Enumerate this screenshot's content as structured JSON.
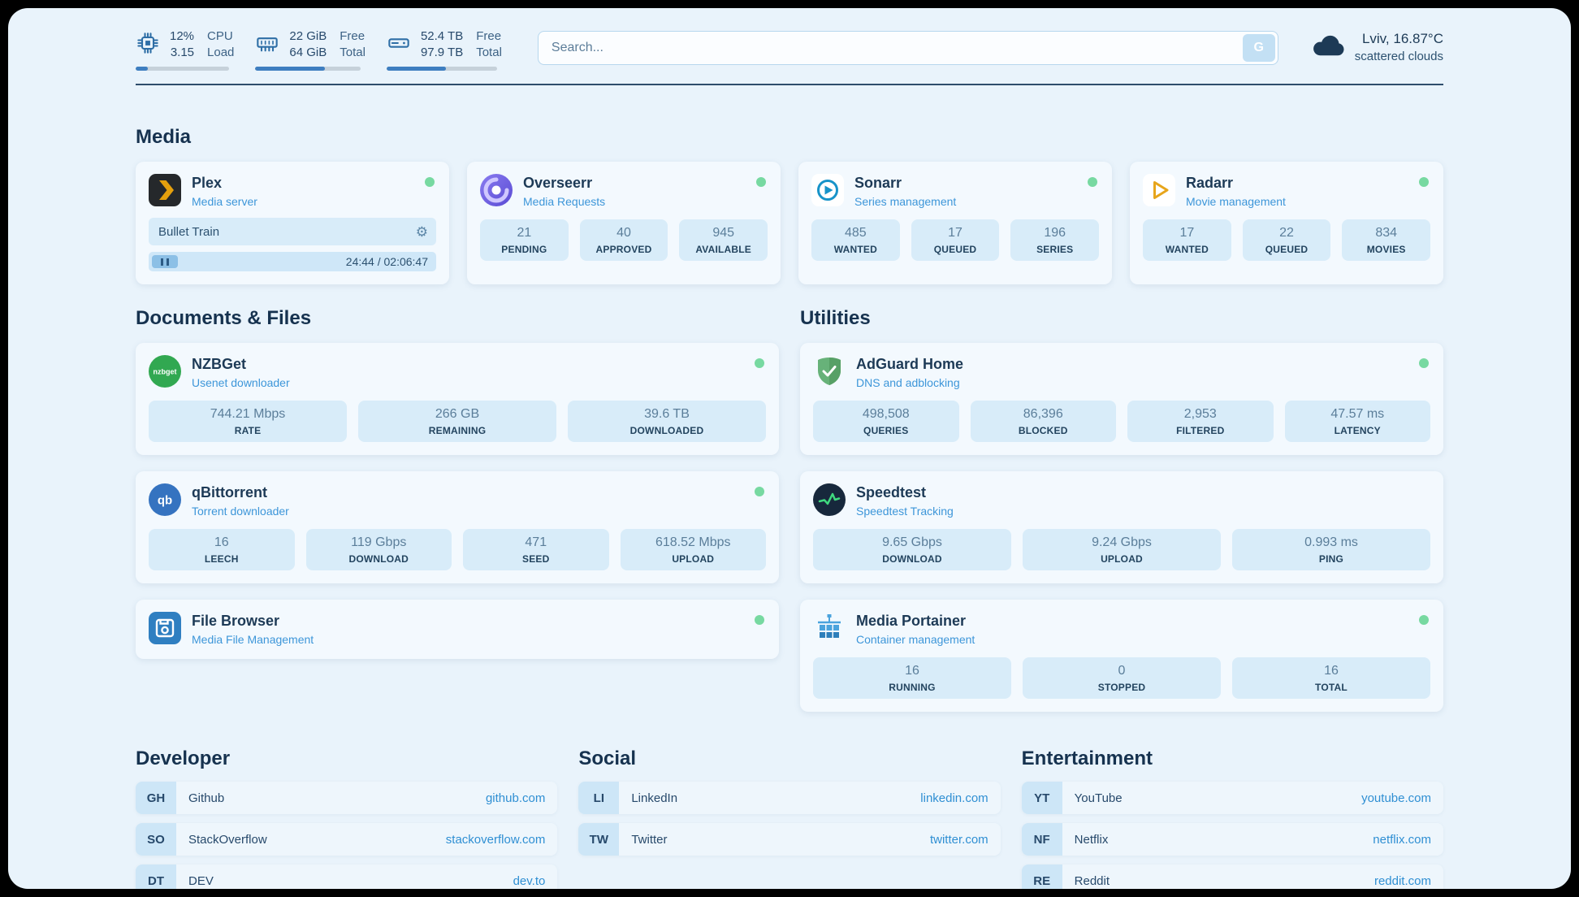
{
  "header": {
    "cpu": {
      "top_value": "12%",
      "top_label": "CPU",
      "bottom_value": "3.15",
      "bottom_label": "Load",
      "progress_pct": 13
    },
    "memory": {
      "top_value": "22 GiB",
      "top_label": "Free",
      "bottom_value": "64 GiB",
      "bottom_label": "Total",
      "progress_pct": 66
    },
    "disk": {
      "top_value": "52.4 TB",
      "top_label": "Free",
      "bottom_value": "97.9 TB",
      "bottom_label": "Total",
      "progress_pct": 54
    },
    "search": {
      "placeholder": "Search...",
      "provider_button": "G"
    },
    "weather": {
      "location_temp": "Lviv, 16.87°C",
      "description": "scattered clouds"
    }
  },
  "media": {
    "title": "Media",
    "plex": {
      "name": "Plex",
      "subtitle": "Media server",
      "now_playing": {
        "title": "Bullet Train",
        "time": "24:44 / 02:06:47"
      }
    },
    "overseerr": {
      "name": "Overseerr",
      "subtitle": "Media Requests",
      "stats": [
        {
          "value": "21",
          "label": "PENDING"
        },
        {
          "value": "40",
          "label": "APPROVED"
        },
        {
          "value": "945",
          "label": "AVAILABLE"
        }
      ]
    },
    "sonarr": {
      "name": "Sonarr",
      "subtitle": "Series management",
      "stats": [
        {
          "value": "485",
          "label": "WANTED"
        },
        {
          "value": "17",
          "label": "QUEUED"
        },
        {
          "value": "196",
          "label": "SERIES"
        }
      ]
    },
    "radarr": {
      "name": "Radarr",
      "subtitle": "Movie management",
      "stats": [
        {
          "value": "17",
          "label": "WANTED"
        },
        {
          "value": "22",
          "label": "QUEUED"
        },
        {
          "value": "834",
          "label": "MOVIES"
        }
      ]
    }
  },
  "documents": {
    "title": "Documents & Files",
    "nzbget": {
      "name": "NZBGet",
      "subtitle": "Usenet downloader",
      "stats": [
        {
          "value": "744.21 Mbps",
          "label": "RATE"
        },
        {
          "value": "266 GB",
          "label": "REMAINING"
        },
        {
          "value": "39.6 TB",
          "label": "DOWNLOADED"
        }
      ]
    },
    "qbittorrent": {
      "name": "qBittorrent",
      "subtitle": "Torrent downloader",
      "stats": [
        {
          "value": "16",
          "label": "LEECH"
        },
        {
          "value": "119 Gbps",
          "label": "DOWNLOAD"
        },
        {
          "value": "471",
          "label": "SEED"
        },
        {
          "value": "618.52 Mbps",
          "label": "UPLOAD"
        }
      ]
    },
    "filebrowser": {
      "name": "File Browser",
      "subtitle": "Media File Management"
    }
  },
  "utilities": {
    "title": "Utilities",
    "adguard": {
      "name": "AdGuard Home",
      "subtitle": "DNS and adblocking",
      "stats": [
        {
          "value": "498,508",
          "label": "QUERIES"
        },
        {
          "value": "86,396",
          "label": "BLOCKED"
        },
        {
          "value": "2,953",
          "label": "FILTERED"
        },
        {
          "value": "47.57 ms",
          "label": "LATENCY"
        }
      ]
    },
    "speedtest": {
      "name": "Speedtest",
      "subtitle": "Speedtest Tracking",
      "stats": [
        {
          "value": "9.65 Gbps",
          "label": "DOWNLOAD"
        },
        {
          "value": "9.24 Gbps",
          "label": "UPLOAD"
        },
        {
          "value": "0.993 ms",
          "label": "PING"
        }
      ]
    },
    "portainer": {
      "name": "Media Portainer",
      "subtitle": "Container management",
      "stats": [
        {
          "value": "16",
          "label": "RUNNING"
        },
        {
          "value": "0",
          "label": "STOPPED"
        },
        {
          "value": "16",
          "label": "TOTAL"
        }
      ]
    }
  },
  "bookmarks": {
    "developer": {
      "title": "Developer",
      "items": [
        {
          "abbr": "GH",
          "name": "Github",
          "link": "github.com"
        },
        {
          "abbr": "SO",
          "name": "StackOverflow",
          "link": "stackoverflow.com"
        },
        {
          "abbr": "DT",
          "name": "DEV",
          "link": "dev.to"
        }
      ]
    },
    "social": {
      "title": "Social",
      "items": [
        {
          "abbr": "LI",
          "name": "LinkedIn",
          "link": "linkedin.com"
        },
        {
          "abbr": "TW",
          "name": "Twitter",
          "link": "twitter.com"
        }
      ]
    },
    "entertainment": {
      "title": "Entertainment",
      "items": [
        {
          "abbr": "YT",
          "name": "YouTube",
          "link": "youtube.com"
        },
        {
          "abbr": "NF",
          "name": "Netflix",
          "link": "netflix.com"
        },
        {
          "abbr": "RE",
          "name": "Reddit",
          "link": "reddit.com"
        }
      ]
    }
  }
}
